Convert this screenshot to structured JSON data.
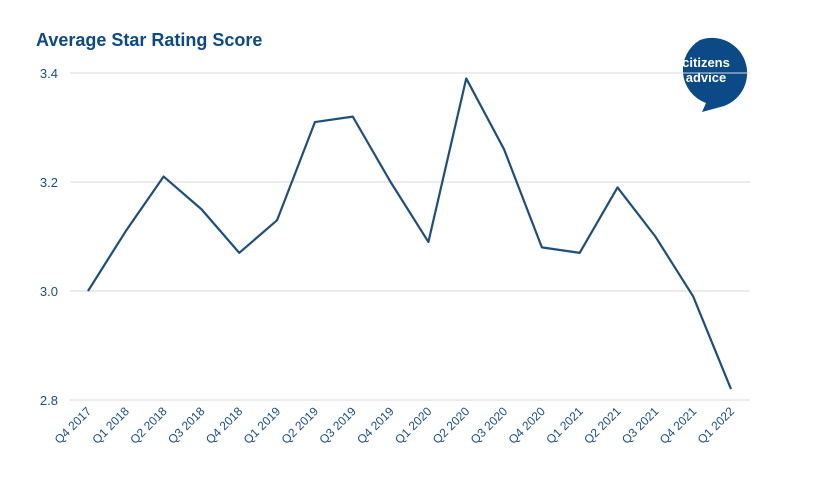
{
  "chart_data": {
    "type": "line",
    "title": "Average Star Rating Score",
    "categories": [
      "Q4 2017",
      "Q1 2018",
      "Q2 2018",
      "Q3 2018",
      "Q4 2018",
      "Q1 2019",
      "Q2 2019",
      "Q3 2019",
      "Q4 2019",
      "Q1 2020",
      "Q2 2020",
      "Q3 2020",
      "Q4 2020",
      "Q1 2021",
      "Q2 2021",
      "Q3 2021",
      "Q4 2021",
      "Q1 2022"
    ],
    "series": [
      {
        "color": "#1d4f7e",
        "values": [
          3.0,
          3.11,
          3.21,
          3.15,
          3.07,
          3.13,
          3.31,
          3.32,
          3.2,
          3.09,
          3.39,
          3.26,
          3.08,
          3.07,
          3.19,
          3.1,
          2.99,
          2.82
        ]
      }
    ],
    "ylim": [
      2.8,
      3.4
    ],
    "yticks": [
      2.8,
      {
        "value": 3,
        "label": "3.0"
      },
      3.2,
      3.4
    ],
    "grid": true
  },
  "logo": {
    "line1": "citizens",
    "line2": "advice"
  }
}
